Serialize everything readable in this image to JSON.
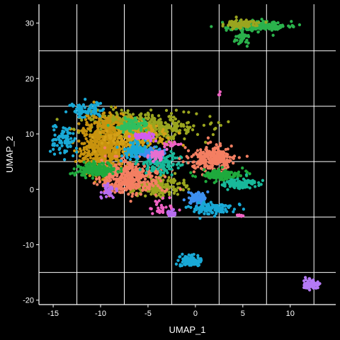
{
  "chart_data": {
    "type": "scatter",
    "title": "",
    "xlabel": "UMAP_1",
    "ylabel": "UMAP_2",
    "xlim": [
      -16.5,
      14.8
    ],
    "ylim": [
      -20.8,
      33.4
    ],
    "x_ticks": [
      -15,
      -10,
      -5,
      0,
      5,
      10
    ],
    "y_ticks": [
      -20,
      -10,
      0,
      10,
      20,
      30
    ],
    "x_gridlines": [
      -12.5,
      -7.5,
      -2.5,
      2.5,
      7.5,
      12.5
    ],
    "y_gridlines": [
      -15,
      -5,
      5,
      15,
      25
    ],
    "grid": true,
    "background": "#000000",
    "grid_color": "#ffffff",
    "axis_color": "#ffffff",
    "text_color": "#ffffff",
    "point_radius_units": 0.16,
    "seed": 20240531,
    "clusters": [
      {
        "name": "top-cluster-green",
        "color": "#2bb24c",
        "n": 220,
        "cx": 6.6,
        "cy": 29.4,
        "sx": 1.7,
        "sy": 0.45
      },
      {
        "name": "top-cluster-olive",
        "color": "#9aa51f",
        "n": 90,
        "cx": 4.8,
        "cy": 29.8,
        "sx": 0.9,
        "sy": 0.35
      },
      {
        "name": "top-cluster-tail",
        "color": "#2bb24c",
        "n": 40,
        "cx": 4.9,
        "cy": 27.4,
        "sx": 0.35,
        "sy": 0.6
      },
      {
        "name": "main-olive-top",
        "color": "#9aa51f",
        "n": 450,
        "cx": -5.5,
        "cy": 11.0,
        "sx": 2.8,
        "sy": 1.3
      },
      {
        "name": "main-olive-left",
        "color": "#9aa51f",
        "n": 110,
        "cx": -8.0,
        "cy": 12.5,
        "sx": 1.4,
        "sy": 0.6
      },
      {
        "name": "main-orange-left",
        "color": "#c8930e",
        "n": 650,
        "cx": -9.5,
        "cy": 8.0,
        "sx": 1.3,
        "sy": 2.6
      },
      {
        "name": "main-orange-center",
        "color": "#d4a017",
        "n": 220,
        "cx": -6.2,
        "cy": 9.5,
        "sx": 1.6,
        "sy": 1.1
      },
      {
        "name": "main-olive-bottom",
        "color": "#9aa51f",
        "n": 200,
        "cx": -4.0,
        "cy": 0.4,
        "sx": 1.5,
        "sy": 0.9
      },
      {
        "name": "main-salmon",
        "color": "#f47f62",
        "n": 420,
        "cx": -7.0,
        "cy": 2.3,
        "sx": 1.6,
        "sy": 1.4
      },
      {
        "name": "main-green-left",
        "color": "#1faa3d",
        "n": 190,
        "cx": -10.5,
        "cy": 3.6,
        "sx": 1.0,
        "sy": 0.55
      },
      {
        "name": "main-teal",
        "color": "#18b99a",
        "n": 140,
        "cx": -3.6,
        "cy": 4.8,
        "sx": 1.1,
        "sy": 1.0
      },
      {
        "name": "main-green-mid",
        "color": "#2fbf5f",
        "n": 90,
        "cx": -6.9,
        "cy": 11.6,
        "sx": 0.9,
        "sy": 0.6
      },
      {
        "name": "main-cyan",
        "color": "#19a9d6",
        "n": 100,
        "cx": -6.0,
        "cy": 7.0,
        "sx": 0.8,
        "sy": 0.7
      },
      {
        "name": "main-blue",
        "color": "#3d8ff0",
        "n": 60,
        "cx": -4.6,
        "cy": 6.5,
        "sx": 0.7,
        "sy": 0.5
      },
      {
        "name": "main-pink",
        "color": "#e66fd0",
        "n": 45,
        "cx": -4.0,
        "cy": 6.2,
        "sx": 0.5,
        "sy": 0.5
      },
      {
        "name": "main-magenta",
        "color": "#d25cf0",
        "n": 55,
        "cx": -5.4,
        "cy": 9.5,
        "sx": 0.6,
        "sy": 0.3
      },
      {
        "name": "left-cyan-blob",
        "color": "#19a9d6",
        "n": 90,
        "cx": -13.8,
        "cy": 8.7,
        "sx": 0.7,
        "sy": 1.3
      },
      {
        "name": "left-cyan-trail",
        "color": "#19a9d6",
        "n": 80,
        "cx": -11.5,
        "cy": 14.4,
        "sx": 1.0,
        "sy": 0.6
      },
      {
        "name": "small-purple",
        "color": "#b86cf0",
        "n": 40,
        "cx": -9.2,
        "cy": -0.4,
        "sx": 0.35,
        "sy": 0.6
      },
      {
        "name": "small-pink-right",
        "color": "#f062c4",
        "n": 30,
        "cx": -3.4,
        "cy": -3.3,
        "sx": 0.9,
        "sy": 0.7
      },
      {
        "name": "small-pink-top",
        "color": "#f062c4",
        "n": 18,
        "cx": -2.2,
        "cy": 8.1,
        "sx": 0.5,
        "sy": 0.2
      },
      {
        "name": "small-purple-tail",
        "color": "#b86cf0",
        "n": 20,
        "cx": -2.5,
        "cy": -4.4,
        "sx": 0.25,
        "sy": 0.4
      },
      {
        "name": "right-salmon",
        "color": "#f47f62",
        "n": 300,
        "cx": 1.8,
        "cy": 5.5,
        "sx": 1.1,
        "sy": 1.1
      },
      {
        "name": "right-green",
        "color": "#1faa3d",
        "n": 140,
        "cx": 2.8,
        "cy": 2.6,
        "sx": 1.1,
        "sy": 0.5
      },
      {
        "name": "right-teal-tail",
        "color": "#18b99a",
        "n": 110,
        "cx": 4.8,
        "cy": 0.9,
        "sx": 0.9,
        "sy": 0.45
      },
      {
        "name": "right-blue-streak",
        "color": "#3d8ff0",
        "n": 90,
        "cx": 0.3,
        "cy": -1.6,
        "sx": 0.5,
        "sy": 0.6
      },
      {
        "name": "right-cyan-streak",
        "color": "#19a9d6",
        "n": 120,
        "cx": 1.9,
        "cy": -3.5,
        "sx": 1.2,
        "sy": 0.5
      },
      {
        "name": "bottom-cyan",
        "color": "#19a9d6",
        "n": 110,
        "cx": -0.6,
        "cy": -12.8,
        "sx": 0.55,
        "sy": 0.55
      },
      {
        "name": "bottom-right-purple",
        "color": "#b47af5",
        "n": 60,
        "cx": 12.2,
        "cy": -17.1,
        "sx": 0.45,
        "sy": 0.45
      },
      {
        "name": "stray-pink-top",
        "color": "#f062c4",
        "n": 3,
        "cx": 2.5,
        "cy": 17.2,
        "sx": 0.1,
        "sy": 0.2
      },
      {
        "name": "stray-pink-right",
        "color": "#f062c4",
        "n": 6,
        "cx": 4.6,
        "cy": -4.7,
        "sx": 0.25,
        "sy": 0.1
      }
    ]
  }
}
